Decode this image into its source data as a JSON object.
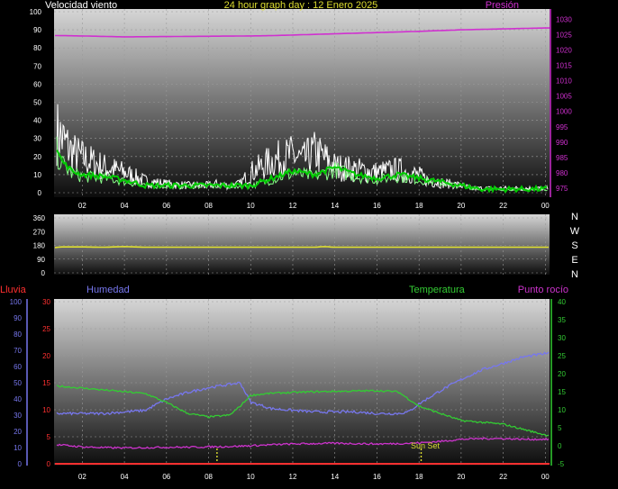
{
  "header": {
    "title": "24 hour graph day : 12 Enero 2025",
    "wind_label": "Velocidad viento",
    "pressure_label": "Presión"
  },
  "middle": {
    "compass_letters": [
      "N",
      "W",
      "S",
      "E",
      "N"
    ]
  },
  "bottom": {
    "rain_label": "Lluvia",
    "humidity_label": "Humedad",
    "temperature_label": "Temperatura",
    "dewpoint_label": "Punto rocío",
    "sunset_label": "Sun Set"
  },
  "colors": {
    "wind_gust": "#ffffff",
    "wind_avg": "#00cc00",
    "wind_avg2": "#88ff88",
    "pressure": "#d030d0",
    "direction": "#e0e030",
    "rain": "#ff3030",
    "humidity": "#7777ee",
    "temperature": "#33cc33",
    "dewpoint": "#cc33cc",
    "sun_marker": "#dddd30"
  },
  "chart_data": [
    {
      "type": "line",
      "title": "24 hour graph day : 12 Enero 2025",
      "x_ticks": [
        "02",
        "04",
        "06",
        "08",
        "10",
        "12",
        "14",
        "16",
        "18",
        "20",
        "22",
        "00"
      ],
      "y_left_ticks": [
        0,
        10,
        20,
        30,
        40,
        50,
        60,
        70,
        80,
        90,
        100
      ],
      "y_left_range": [
        0,
        100
      ],
      "y_right_ticks": [
        975,
        980,
        985,
        990,
        995,
        1000,
        1005,
        1010,
        1015,
        1020,
        1025,
        1030
      ],
      "y_right_range": [
        973.5,
        1032.5
      ],
      "series": [
        {
          "name": "Velocidad viento",
          "kind": "gust_profile",
          "x": [
            0,
            0.5,
            1,
            1.5,
            2,
            3,
            4,
            5,
            6,
            7,
            8,
            8.3,
            9,
            9.5,
            10,
            10.5,
            11,
            11.5,
            12,
            12.5,
            13,
            13.5,
            14,
            15,
            16,
            17,
            18,
            18.5,
            19,
            20,
            20.5,
            21,
            22,
            23,
            24
          ],
          "y": [
            42,
            48,
            38,
            28,
            24,
            18,
            14,
            8,
            6,
            5,
            5,
            6,
            5,
            6,
            14,
            18,
            22,
            24,
            26,
            22,
            28,
            24,
            18,
            16,
            14,
            16,
            12,
            8,
            7,
            5,
            3,
            3,
            3,
            3,
            3
          ]
        },
        {
          "name": "Velocidad viento media",
          "kind": "avg_profile",
          "x": [
            0,
            0.5,
            1,
            1.5,
            2,
            3,
            4,
            5,
            6,
            7,
            8,
            9,
            10,
            11,
            12,
            13,
            14,
            15,
            16,
            17,
            18,
            19,
            20,
            21,
            22,
            23,
            24
          ],
          "y": [
            28,
            34,
            18,
            12,
            10,
            9,
            7,
            4,
            4,
            4,
            4,
            4,
            4,
            8,
            12,
            10,
            14,
            10,
            8,
            10,
            8,
            6,
            4,
            2,
            2,
            2,
            2
          ]
        },
        {
          "name": "Presión",
          "x": [
            0,
            2,
            4,
            6,
            8,
            10,
            11,
            12,
            13,
            14,
            16,
            18,
            20,
            22,
            24
          ],
          "y": [
            1024.8,
            1024.6,
            1024.3,
            1024.4,
            1024.5,
            1024.6,
            1024.7,
            1024.9,
            1025.1,
            1025.3,
            1025.7,
            1026.1,
            1026.6,
            1026.9,
            1027.2
          ]
        }
      ]
    },
    {
      "type": "line",
      "y_ticks": [
        0,
        90,
        180,
        270,
        360
      ],
      "y_range": [
        0,
        360
      ],
      "series": [
        {
          "name": "Dirección viento",
          "x": [
            0,
            0.3,
            1,
            2,
            3,
            4,
            5,
            6,
            8,
            10,
            12,
            13,
            13.5,
            14,
            16,
            18,
            20,
            22,
            24
          ],
          "y": [
            165,
            160,
            170,
            170,
            168,
            172,
            168,
            168,
            168,
            168,
            168,
            168,
            172,
            168,
            168,
            168,
            168,
            168,
            168
          ]
        }
      ]
    },
    {
      "type": "line",
      "x_ticks": [
        "02",
        "04",
        "06",
        "08",
        "10",
        "12",
        "14",
        "16",
        "18",
        "20",
        "22",
        "00"
      ],
      "y_humidity_ticks": [
        0,
        10,
        20,
        30,
        40,
        50,
        60,
        70,
        80,
        90,
        100
      ],
      "y_humidity_range": [
        0,
        100
      ],
      "y_rain_ticks": [
        0,
        5,
        10,
        15,
        20,
        25,
        30
      ],
      "y_rain_range": [
        0,
        30
      ],
      "y_temp_ticks": [
        -5,
        0,
        5,
        10,
        15,
        20,
        25,
        30,
        35,
        40
      ],
      "y_temp_range": [
        -5,
        40
      ],
      "series": [
        {
          "name": "Lluvia",
          "axis": "rain",
          "x": [
            0,
            24
          ],
          "y": [
            0,
            0
          ]
        },
        {
          "name": "Humedad",
          "axis": "humidity",
          "x": [
            0,
            1,
            2,
            3,
            4,
            5,
            6,
            7,
            8,
            9,
            9.5,
            10,
            11,
            12,
            13,
            14,
            15,
            16,
            17,
            17.5,
            18,
            19,
            20,
            21,
            22,
            23,
            24
          ],
          "y": [
            31,
            31,
            31,
            31,
            32,
            33,
            40,
            44,
            47,
            49,
            50,
            38,
            34,
            33,
            32,
            32,
            32,
            31,
            31,
            32,
            37,
            45,
            52,
            58,
            62,
            66,
            68
          ]
        },
        {
          "name": "Temperatura",
          "axis": "temp",
          "x": [
            0,
            1,
            2,
            3,
            4,
            5,
            6,
            7,
            8,
            9,
            9.5,
            10,
            11,
            12,
            13,
            14,
            15,
            16,
            17,
            17.5,
            18,
            19,
            20,
            21,
            22,
            23,
            24
          ],
          "y": [
            17,
            16.5,
            16,
            15.5,
            15,
            14.5,
            12,
            9,
            8,
            8.5,
            11,
            14,
            14.6,
            14.8,
            15,
            15.1,
            15.2,
            15.3,
            15,
            13,
            11,
            9,
            7,
            6.5,
            6,
            4.5,
            3
          ]
        },
        {
          "name": "Punto rocío",
          "axis": "temp",
          "x": [
            0,
            1,
            2,
            3,
            4,
            5,
            6,
            7,
            8,
            9,
            10,
            11,
            12,
            13,
            14,
            15,
            16,
            17,
            18,
            19,
            20,
            21,
            22,
            23,
            24
          ],
          "y": [
            0.5,
            0.2,
            -0.3,
            -0.5,
            -0.6,
            -0.5,
            -0.4,
            -0.4,
            -0.3,
            -0.2,
            0,
            0.3,
            0.5,
            0.6,
            0.7,
            0.6,
            0.5,
            0.6,
            0.8,
            1.2,
            1.8,
            2,
            2,
            1.8,
            1.8
          ]
        }
      ],
      "annotations": [
        {
          "text": "Sun Set",
          "x": 18
        }
      ],
      "markers_x": [
        8.4,
        18.1
      ]
    }
  ]
}
